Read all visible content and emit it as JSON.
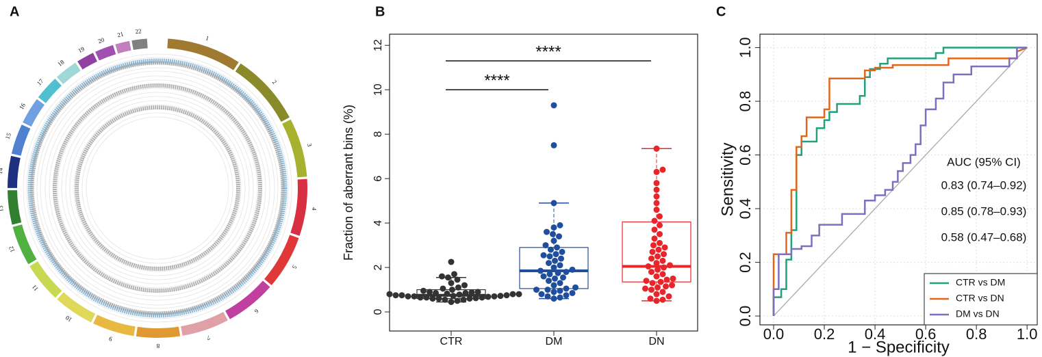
{
  "chart_data": [
    {
      "type": "circos",
      "panel_label": "A",
      "categories": [
        "1",
        "2",
        "3",
        "4",
        "5",
        "6",
        "7",
        "8",
        "9",
        "10",
        "11",
        "12",
        "13",
        "14",
        "15",
        "16",
        "17",
        "18",
        "19",
        "20",
        "21",
        "22"
      ],
      "values": [
        249,
        243,
        198,
        191,
        181,
        171,
        159,
        146,
        141,
        136,
        135,
        134,
        115,
        107,
        102,
        90,
        83,
        78,
        59,
        63,
        48,
        51
      ],
      "colors": [
        "#a07a30",
        "#8a8a2a",
        "#a8b030",
        "#d83040",
        "#e03838",
        "#c040a0",
        "#e0a0a8",
        "#e09830",
        "#e8b840",
        "#e0d858",
        "#c8d850",
        "#50b040",
        "#308030",
        "#203080",
        "#5080d0",
        "#70a0e0",
        "#50c0d0",
        "#a0d8d8",
        "#9040a0",
        "#a050b0",
        "#c080c0",
        "#808080"
      ]
    },
    {
      "type": "box",
      "panel_label": "B",
      "ylabel": "Fraction of aberrant bins (%)",
      "categories": [
        "CTR",
        "DM",
        "DN"
      ],
      "ylim": [
        -0.86,
        12.5
      ],
      "yticks": [
        0,
        2,
        4,
        6,
        8,
        10,
        12
      ],
      "series": [
        {
          "color": "#333333",
          "min": 0.45,
          "q1": 0.6,
          "median": 0.75,
          "q3": 1.0,
          "max": 1.55,
          "points": [
            0.45,
            0.5,
            0.55,
            0.55,
            0.6,
            0.6,
            0.6,
            0.62,
            0.65,
            0.65,
            0.65,
            0.68,
            0.7,
            0.7,
            0.7,
            0.72,
            0.72,
            0.75,
            0.75,
            0.75,
            0.78,
            0.8,
            0.8,
            0.8,
            0.82,
            0.85,
            0.85,
            0.88,
            0.9,
            0.9,
            0.95,
            1.0,
            1.05,
            1.1,
            1.2,
            1.3,
            1.45,
            1.55,
            1.6,
            1.7,
            2.25
          ]
        },
        {
          "color": "#1f4e9c",
          "min": 0.6,
          "q1": 1.05,
          "median": 1.85,
          "q3": 2.9,
          "max": 4.9,
          "points": [
            0.6,
            0.65,
            0.7,
            0.75,
            0.8,
            0.85,
            0.9,
            0.95,
            1.0,
            1.0,
            1.05,
            1.1,
            1.2,
            1.3,
            1.4,
            1.5,
            1.55,
            1.6,
            1.7,
            1.75,
            1.8,
            1.85,
            1.9,
            2.0,
            2.1,
            2.2,
            2.3,
            2.4,
            2.5,
            2.55,
            2.6,
            2.7,
            2.8,
            2.9,
            3.0,
            3.2,
            3.4,
            3.5,
            3.6,
            3.8,
            3.9,
            4.9,
            7.5,
            9.3
          ]
        },
        {
          "color": "#e8252a",
          "min": 0.5,
          "q1": 1.35,
          "median": 2.05,
          "q3": 4.05,
          "max": 7.35,
          "points": [
            0.5,
            0.55,
            0.6,
            0.7,
            0.8,
            0.9,
            1.0,
            1.05,
            1.1,
            1.15,
            1.2,
            1.3,
            1.35,
            1.4,
            1.45,
            1.5,
            1.6,
            1.7,
            1.8,
            1.9,
            2.0,
            2.05,
            2.1,
            2.2,
            2.3,
            2.4,
            2.5,
            2.6,
            2.7,
            2.8,
            2.9,
            3.0,
            3.1,
            3.3,
            3.5,
            3.7,
            3.9,
            4.1,
            4.3,
            4.6,
            4.9,
            5.2,
            5.5,
            5.8,
            6.3,
            6.4,
            7.35
          ]
        }
      ],
      "annotations": [
        {
          "text": "****",
          "from": 0,
          "to": 1,
          "y": 10
        },
        {
          "text": "****",
          "from": 0,
          "to": 2,
          "y": 11.3
        }
      ]
    },
    {
      "type": "roc",
      "panel_label": "C",
      "xlabel": "1 − Specificity",
      "ylabel": "Sensitivity",
      "xlim": [
        -0.054,
        1.04
      ],
      "ylim": [
        -0.033,
        1.05
      ],
      "xticks": [
        {
          "value": 0,
          "label": "0.0"
        },
        0.2,
        0.4,
        0.6,
        0.8,
        {
          "value": 1,
          "label": "1.0"
        }
      ],
      "yticks": [
        {
          "value": 0,
          "label": "0.0"
        },
        0.2,
        0.4,
        0.6,
        0.8,
        {
          "value": 1,
          "label": "1.0"
        }
      ],
      "grid": true,
      "reference_line": true,
      "legend": "bottom right",
      "auc_title": "AUC (95% CI)",
      "series": [
        {
          "name": "CTR vs DM",
          "color": "#21a07a",
          "auc_label": "0.83 (0.74–0.92)",
          "x": [
            0,
            0,
            0.03,
            0.03,
            0.05,
            0.05,
            0.07,
            0.07,
            0.09,
            0.09,
            0.11,
            0.11,
            0.17,
            0.17,
            0.2,
            0.2,
            0.22,
            0.22,
            0.25,
            0.25,
            0.34,
            0.34,
            0.36,
            0.36,
            0.38,
            0.38,
            0.42,
            0.42,
            0.45,
            0.45,
            0.64,
            0.64,
            0.67,
            0.67,
            1
          ],
          "y": [
            0,
            0.07,
            0.07,
            0.1,
            0.1,
            0.21,
            0.21,
            0.32,
            0.32,
            0.6,
            0.6,
            0.65,
            0.65,
            0.7,
            0.7,
            0.73,
            0.73,
            0.76,
            0.76,
            0.79,
            0.79,
            0.82,
            0.82,
            0.89,
            0.89,
            0.92,
            0.92,
            0.94,
            0.94,
            0.96,
            0.96,
            0.98,
            0.98,
            1,
            1
          ]
        },
        {
          "name": "CTR vs DN",
          "color": "#e0661c",
          "auc_label": "0.85 (0.78–0.93)",
          "x": [
            0,
            0,
            0.05,
            0.05,
            0.07,
            0.07,
            0.09,
            0.09,
            0.11,
            0.11,
            0.13,
            0.13,
            0.2,
            0.2,
            0.22,
            0.22,
            0.36,
            0.36,
            0.4,
            0.4,
            0.47,
            0.47,
            0.69,
            0.69,
            0.96,
            0.96,
            1
          ],
          "y": [
            0,
            0.23,
            0.23,
            0.31,
            0.31,
            0.47,
            0.47,
            0.63,
            0.63,
            0.67,
            0.67,
            0.74,
            0.74,
            0.77,
            0.77,
            0.885,
            0.885,
            0.915,
            0.915,
            0.925,
            0.925,
            0.935,
            0.935,
            0.96,
            0.96,
            0.985,
            1
          ]
        },
        {
          "name": "DM vs DN",
          "color": "#7b6fc0",
          "auc_label": "0.58 (0.47–0.68)",
          "x": [
            0,
            0,
            0.02,
            0.02,
            0.07,
            0.07,
            0.11,
            0.11,
            0.15,
            0.15,
            0.18,
            0.18,
            0.27,
            0.27,
            0.36,
            0.36,
            0.4,
            0.4,
            0.44,
            0.44,
            0.47,
            0.47,
            0.49,
            0.49,
            0.51,
            0.51,
            0.54,
            0.54,
            0.56,
            0.56,
            0.58,
            0.58,
            0.6,
            0.6,
            0.64,
            0.64,
            0.67,
            0.67,
            0.71,
            0.71,
            0.78,
            0.78,
            0.93,
            0.93,
            0.96,
            0.96,
            1
          ],
          "y": [
            0,
            0.1,
            0.1,
            0.23,
            0.23,
            0.25,
            0.25,
            0.26,
            0.26,
            0.3,
            0.3,
            0.34,
            0.34,
            0.38,
            0.38,
            0.43,
            0.43,
            0.45,
            0.45,
            0.47,
            0.47,
            0.5,
            0.5,
            0.54,
            0.54,
            0.57,
            0.57,
            0.6,
            0.6,
            0.64,
            0.64,
            0.71,
            0.71,
            0.77,
            0.77,
            0.81,
            0.81,
            0.87,
            0.87,
            0.9,
            0.9,
            0.93,
            0.93,
            0.96,
            0.96,
            1,
            1
          ]
        }
      ]
    }
  ]
}
